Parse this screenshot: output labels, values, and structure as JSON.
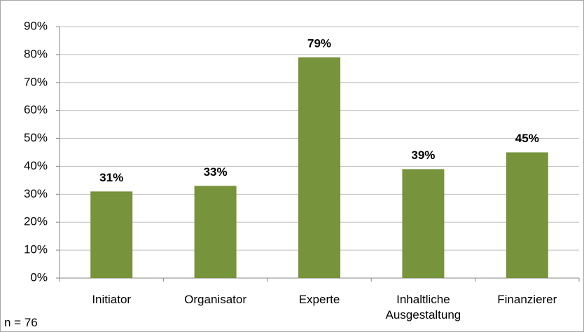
{
  "chart_data": {
    "type": "bar",
    "categories": [
      "Initiator",
      "Organisator",
      "Experte",
      "Inhaltliche Ausgestaltung",
      "Finanzierer"
    ],
    "values": [
      31,
      33,
      79,
      39,
      45
    ],
    "value_labels": [
      "31%",
      "33%",
      "79%",
      "39%",
      "45%"
    ],
    "color": "#77933c",
    "ylim": [
      0,
      90
    ],
    "yticks": [
      {
        "value": 0,
        "label": "0%"
      },
      {
        "value": 10,
        "label": "10%"
      },
      {
        "value": 20,
        "label": "20%"
      },
      {
        "value": 30,
        "label": "30%"
      },
      {
        "value": 40,
        "label": "40%"
      },
      {
        "value": 50,
        "label": "50%"
      },
      {
        "value": 60,
        "label": "60%"
      },
      {
        "value": 70,
        "label": "70%"
      },
      {
        "value": 80,
        "label": "80%"
      },
      {
        "value": 90,
        "label": "90%"
      }
    ],
    "grid": true,
    "annotation": "n = 76"
  }
}
